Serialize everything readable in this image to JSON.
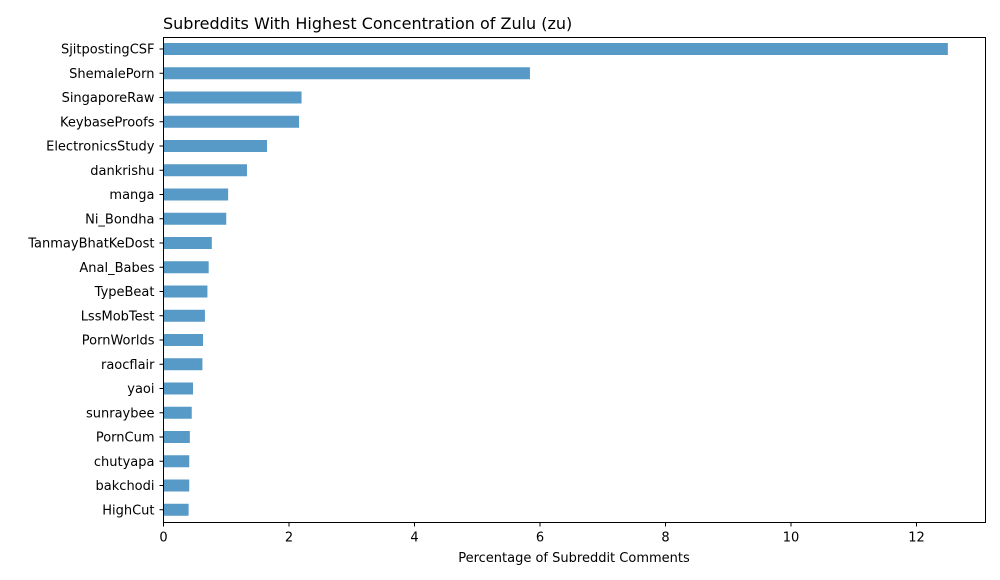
{
  "chart_data": {
    "type": "bar",
    "orientation": "horizontal",
    "title": "Subreddits With Highest Concentration of Zulu (zu)",
    "xlabel": "Percentage of Subreddit Comments",
    "ylabel": "",
    "xlim": [
      0,
      13.1
    ],
    "xticks": [
      0,
      2,
      4,
      6,
      8,
      10,
      12
    ],
    "grid": false,
    "bar_color": "#5799c7",
    "categories": [
      "SjitpostingCSF",
      "ShemalePorn",
      "SingaporeRaw",
      "KeybaseProofs",
      "ElectronicsStudy",
      "dankrishu",
      "manga",
      "Ni_Bondha",
      "TanmayBhatKeDost",
      "Anal_Babes",
      "TypeBeat",
      "LssMobTest",
      "PornWorlds",
      "raocflair",
      "yaoi",
      "sunraybee",
      "PornCum",
      "chutyapa",
      "bakchodi",
      "HighCut"
    ],
    "values": [
      12.5,
      5.84,
      2.2,
      2.16,
      1.65,
      1.33,
      1.03,
      1.0,
      0.77,
      0.72,
      0.7,
      0.66,
      0.63,
      0.62,
      0.47,
      0.45,
      0.42,
      0.41,
      0.41,
      0.4
    ]
  }
}
